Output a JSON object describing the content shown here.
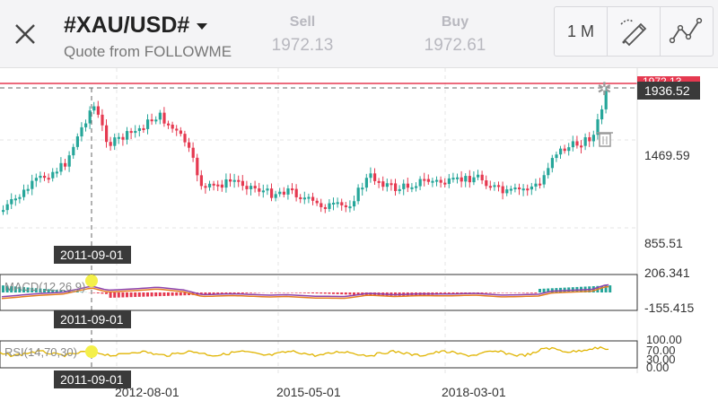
{
  "header": {
    "symbol": "#XAU/USD#",
    "quote_source": "Quote from FOLLOWME",
    "sell_label": "Sell",
    "sell_price": "1972.13",
    "buy_label": "Buy",
    "buy_price": "1972.61",
    "period": "1 M"
  },
  "main_chart": {
    "price_tag": "1936.52",
    "y_ticks": [
      "1469.59",
      "855.51"
    ],
    "crosshair_date": "2011-09-01",
    "partial_top_label": "1972.13"
  },
  "macd": {
    "label": "MACD(12,26,9)",
    "y_max": "206.341",
    "y_min": "-155.415",
    "crosshair_date": "2011-09-01"
  },
  "rsi": {
    "label": "RSI(14,70,30)",
    "levels": [
      "100.00",
      "70.00",
      "30.00",
      "0.00"
    ],
    "crosshair_date": "2011-09-01"
  },
  "x_axis": {
    "labels": [
      "2012-08-01",
      "2015-05-01",
      "2018-03-01"
    ]
  },
  "colors": {
    "up": "#26a69a",
    "down": "#e53950",
    "price_line": "#e53950",
    "macd_line": "#8e44ad",
    "signal_line": "#e67e22",
    "rsi_line": "#e0b400",
    "crosshair_dot": "#f4f04a"
  },
  "icons": {
    "close": "close-icon",
    "period": "period-selector",
    "draw": "drawing-tool-icon",
    "indicator": "indicator-icon",
    "delete": "trash-icon"
  }
}
